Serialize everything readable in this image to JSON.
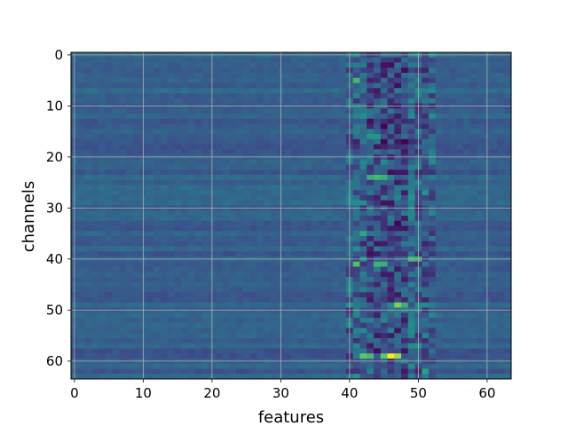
{
  "chart_data": {
    "type": "heatmap",
    "title": "",
    "xlabel": "features",
    "ylabel": "channels",
    "n_cols": 64,
    "n_rows": 64,
    "xlim": [
      -0.5,
      63.5
    ],
    "ylim": [
      63.5,
      -0.5
    ],
    "y_inverted": true,
    "x_ticks": [
      0,
      10,
      20,
      30,
      40,
      50,
      60
    ],
    "y_ticks": [
      0,
      10,
      20,
      30,
      40,
      50,
      60
    ],
    "grid": true,
    "colormap": "viridis",
    "value_range": [
      0,
      1
    ],
    "colormap_stops": [
      "#440154",
      "#3b528b",
      "#21918c",
      "#5ec962",
      "#fde725"
    ],
    "background_level": 0.3,
    "hot_cells": [
      {
        "x": 41,
        "y": 5,
        "value": 0.66
      },
      {
        "x": 43,
        "y": 16,
        "value": 0.52
      },
      {
        "x": 44,
        "y": 16,
        "value": 0.52
      },
      {
        "x": 43,
        "y": 24,
        "value": 0.62
      },
      {
        "x": 44,
        "y": 24,
        "value": 0.66
      },
      {
        "x": 45,
        "y": 24,
        "value": 0.62
      },
      {
        "x": 42,
        "y": 35,
        "value": 0.58
      },
      {
        "x": 49,
        "y": 40,
        "value": 0.66
      },
      {
        "x": 50,
        "y": 40,
        "value": 0.62
      },
      {
        "x": 41,
        "y": 41,
        "value": 0.7
      },
      {
        "x": 44,
        "y": 41,
        "value": 0.64
      },
      {
        "x": 45,
        "y": 41,
        "value": 0.62
      },
      {
        "x": 47,
        "y": 49,
        "value": 0.8
      },
      {
        "x": 48,
        "y": 49,
        "value": 0.62
      },
      {
        "x": 42,
        "y": 59,
        "value": 0.74
      },
      {
        "x": 43,
        "y": 59,
        "value": 0.68
      },
      {
        "x": 45,
        "y": 59,
        "value": 0.74
      },
      {
        "x": 46,
        "y": 59,
        "value": 1.0
      },
      {
        "x": 47,
        "y": 59,
        "value": 0.86
      },
      {
        "x": 51,
        "y": 62,
        "value": 0.56
      }
    ],
    "cold_cells": [
      {
        "x": 45,
        "y": 2,
        "value": 0.05
      },
      {
        "x": 46,
        "y": 2,
        "value": 0.04
      },
      {
        "x": 44,
        "y": 7,
        "value": 0.08
      },
      {
        "x": 47,
        "y": 12,
        "value": 0.08
      },
      {
        "x": 46,
        "y": 20,
        "value": 0.08
      },
      {
        "x": 45,
        "y": 29,
        "value": 0.05
      },
      {
        "x": 46,
        "y": 29,
        "value": 0.06
      },
      {
        "x": 45,
        "y": 43,
        "value": 0.08
      },
      {
        "x": 46,
        "y": 43,
        "value": 0.08
      },
      {
        "x": 47,
        "y": 54,
        "value": 0.06
      },
      {
        "x": 46,
        "y": 55,
        "value": 0.08
      }
    ]
  }
}
